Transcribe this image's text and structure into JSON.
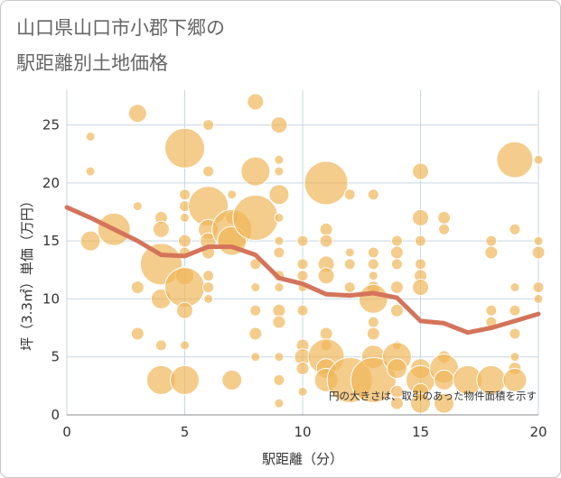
{
  "chart_data": {
    "type": "scatter",
    "title": [
      "山口県山口市小郡下郷の",
      "駅距離別土地価格"
    ],
    "xlabel": "駅距離（分）",
    "ylabel": "坪（3.3㎡）単価（万円）",
    "xlim": [
      0,
      20
    ],
    "ylim": [
      0,
      28
    ],
    "xticks": [
      0,
      5,
      10,
      15,
      20
    ],
    "yticks": [
      0,
      5,
      10,
      15,
      20,
      25
    ],
    "grid": true,
    "annotation": "円の大きさは、取引のあった物件面積を示す",
    "colors": {
      "bubble": "#f0b65a",
      "bubble_stroke": "#ffffff",
      "trend": "#d4745a",
      "grid": "#c8d6e2",
      "frame": "#c6c6c6",
      "title": "#666666"
    },
    "points": [
      {
        "x": 1,
        "y": 24,
        "s": 5
      },
      {
        "x": 1,
        "y": 21,
        "s": 5
      },
      {
        "x": 1,
        "y": 15,
        "s": 11
      },
      {
        "x": 2,
        "y": 16,
        "s": 18
      },
      {
        "x": 3,
        "y": 26,
        "s": 10
      },
      {
        "x": 3,
        "y": 18,
        "s": 5
      },
      {
        "x": 3,
        "y": 11,
        "s": 7
      },
      {
        "x": 3,
        "y": 7,
        "s": 7
      },
      {
        "x": 4,
        "y": 17,
        "s": 7
      },
      {
        "x": 4,
        "y": 16,
        "s": 9
      },
      {
        "x": 4,
        "y": 13,
        "s": 23
      },
      {
        "x": 4,
        "y": 10,
        "s": 11
      },
      {
        "x": 4,
        "y": 6,
        "s": 6
      },
      {
        "x": 4,
        "y": 3,
        "s": 16
      },
      {
        "x": 5,
        "y": 23,
        "s": 22
      },
      {
        "x": 5,
        "y": 19,
        "s": 6
      },
      {
        "x": 5,
        "y": 18,
        "s": 6
      },
      {
        "x": 5,
        "y": 17,
        "s": 5
      },
      {
        "x": 5,
        "y": 15,
        "s": 7
      },
      {
        "x": 5,
        "y": 14,
        "s": 6
      },
      {
        "x": 5,
        "y": 12,
        "s": 10
      },
      {
        "x": 5,
        "y": 11,
        "s": 22
      },
      {
        "x": 5,
        "y": 9,
        "s": 9
      },
      {
        "x": 5,
        "y": 6,
        "s": 5
      },
      {
        "x": 5,
        "y": 3,
        "s": 16
      },
      {
        "x": 6,
        "y": 25,
        "s": 6
      },
      {
        "x": 6,
        "y": 21,
        "s": 6
      },
      {
        "x": 6,
        "y": 18,
        "s": 22
      },
      {
        "x": 6,
        "y": 16,
        "s": 11
      },
      {
        "x": 6,
        "y": 15,
        "s": 9
      },
      {
        "x": 6,
        "y": 14,
        "s": 7
      },
      {
        "x": 6,
        "y": 12,
        "s": 6
      },
      {
        "x": 6,
        "y": 11,
        "s": 6
      },
      {
        "x": 6,
        "y": 10,
        "s": 5
      },
      {
        "x": 7,
        "y": 19,
        "s": 5
      },
      {
        "x": 7,
        "y": 17,
        "s": 7
      },
      {
        "x": 7,
        "y": 16,
        "s": 22
      },
      {
        "x": 7,
        "y": 15,
        "s": 16
      },
      {
        "x": 7,
        "y": 3,
        "s": 11
      },
      {
        "x": 8,
        "y": 27,
        "s": 9
      },
      {
        "x": 8,
        "y": 21,
        "s": 16
      },
      {
        "x": 8,
        "y": 17,
        "s": 25
      },
      {
        "x": 8,
        "y": 13,
        "s": 6
      },
      {
        "x": 8,
        "y": 11,
        "s": 5
      },
      {
        "x": 8,
        "y": 9,
        "s": 6
      },
      {
        "x": 8,
        "y": 7,
        "s": 7
      },
      {
        "x": 8,
        "y": 5,
        "s": 5
      },
      {
        "x": 9,
        "y": 25,
        "s": 9
      },
      {
        "x": 9,
        "y": 22,
        "s": 5
      },
      {
        "x": 9,
        "y": 21,
        "s": 5
      },
      {
        "x": 9,
        "y": 19,
        "s": 11
      },
      {
        "x": 9,
        "y": 17,
        "s": 5
      },
      {
        "x": 9,
        "y": 15,
        "s": 5
      },
      {
        "x": 9,
        "y": 14,
        "s": 6
      },
      {
        "x": 9,
        "y": 12,
        "s": 6
      },
      {
        "x": 9,
        "y": 11,
        "s": 5
      },
      {
        "x": 9,
        "y": 9,
        "s": 7
      },
      {
        "x": 9,
        "y": 8,
        "s": 7
      },
      {
        "x": 9,
        "y": 5,
        "s": 5
      },
      {
        "x": 9,
        "y": 3,
        "s": 6
      },
      {
        "x": 9,
        "y": 1,
        "s": 5
      },
      {
        "x": 10,
        "y": 15,
        "s": 6
      },
      {
        "x": 10,
        "y": 13,
        "s": 6
      },
      {
        "x": 10,
        "y": 12,
        "s": 6
      },
      {
        "x": 10,
        "y": 11,
        "s": 5
      },
      {
        "x": 10,
        "y": 9,
        "s": 6
      },
      {
        "x": 10,
        "y": 6,
        "s": 7
      },
      {
        "x": 10,
        "y": 5,
        "s": 9
      },
      {
        "x": 10,
        "y": 4,
        "s": 7
      },
      {
        "x": 10,
        "y": 2,
        "s": 5
      },
      {
        "x": 11,
        "y": 20,
        "s": 24
      },
      {
        "x": 11,
        "y": 16,
        "s": 7
      },
      {
        "x": 11,
        "y": 15,
        "s": 7
      },
      {
        "x": 11,
        "y": 13,
        "s": 9
      },
      {
        "x": 11,
        "y": 12,
        "s": 9
      },
      {
        "x": 11,
        "y": 7,
        "s": 7
      },
      {
        "x": 11,
        "y": 6,
        "s": 6
      },
      {
        "x": 11,
        "y": 5,
        "s": 20
      },
      {
        "x": 11,
        "y": 4,
        "s": 11
      },
      {
        "x": 11,
        "y": 3,
        "s": 13
      },
      {
        "x": 12,
        "y": 19,
        "s": 6
      },
      {
        "x": 12,
        "y": 14,
        "s": 5
      },
      {
        "x": 12,
        "y": 13,
        "s": 6
      },
      {
        "x": 12,
        "y": 11,
        "s": 6
      },
      {
        "x": 12,
        "y": 3,
        "s": 25
      },
      {
        "x": 13,
        "y": 19,
        "s": 6
      },
      {
        "x": 13,
        "y": 14,
        "s": 6
      },
      {
        "x": 13,
        "y": 13,
        "s": 6
      },
      {
        "x": 13,
        "y": 12,
        "s": 5
      },
      {
        "x": 13,
        "y": 11,
        "s": 7
      },
      {
        "x": 13,
        "y": 10,
        "s": 16
      },
      {
        "x": 13,
        "y": 8,
        "s": 6
      },
      {
        "x": 13,
        "y": 7,
        "s": 7
      },
      {
        "x": 13,
        "y": 5,
        "s": 13
      },
      {
        "x": 13,
        "y": 3,
        "s": 25
      },
      {
        "x": 14,
        "y": 15,
        "s": 6
      },
      {
        "x": 14,
        "y": 14,
        "s": 7
      },
      {
        "x": 14,
        "y": 13,
        "s": 6
      },
      {
        "x": 14,
        "y": 11,
        "s": 7
      },
      {
        "x": 14,
        "y": 9,
        "s": 7
      },
      {
        "x": 14,
        "y": 6,
        "s": 5
      },
      {
        "x": 14,
        "y": 5,
        "s": 16
      },
      {
        "x": 14,
        "y": 4,
        "s": 11
      },
      {
        "x": 14,
        "y": 2,
        "s": 7
      },
      {
        "x": 14,
        "y": 1,
        "s": 7
      },
      {
        "x": 15,
        "y": 21,
        "s": 9
      },
      {
        "x": 15,
        "y": 17,
        "s": 9
      },
      {
        "x": 15,
        "y": 15,
        "s": 6
      },
      {
        "x": 15,
        "y": 13,
        "s": 6
      },
      {
        "x": 15,
        "y": 12,
        "s": 7
      },
      {
        "x": 15,
        "y": 11,
        "s": 9
      },
      {
        "x": 15,
        "y": 4,
        "s": 11
      },
      {
        "x": 15,
        "y": 3,
        "s": 16
      },
      {
        "x": 15,
        "y": 2,
        "s": 9
      },
      {
        "x": 15,
        "y": 1,
        "s": 11
      },
      {
        "x": 16,
        "y": 17,
        "s": 7
      },
      {
        "x": 16,
        "y": 16,
        "s": 6
      },
      {
        "x": 16,
        "y": 5,
        "s": 7
      },
      {
        "x": 16,
        "y": 4,
        "s": 16
      },
      {
        "x": 16,
        "y": 3,
        "s": 11
      },
      {
        "x": 16,
        "y": 1,
        "s": 11
      },
      {
        "x": 17,
        "y": 3,
        "s": 16
      },
      {
        "x": 18,
        "y": 15,
        "s": 6
      },
      {
        "x": 18,
        "y": 14,
        "s": 7
      },
      {
        "x": 18,
        "y": 9,
        "s": 6
      },
      {
        "x": 18,
        "y": 8,
        "s": 6
      },
      {
        "x": 18,
        "y": 3,
        "s": 16
      },
      {
        "x": 19,
        "y": 22,
        "s": 20
      },
      {
        "x": 19,
        "y": 16,
        "s": 6
      },
      {
        "x": 19,
        "y": 11,
        "s": 5
      },
      {
        "x": 19,
        "y": 9,
        "s": 6
      },
      {
        "x": 19,
        "y": 7,
        "s": 6
      },
      {
        "x": 19,
        "y": 5,
        "s": 5
      },
      {
        "x": 19,
        "y": 4,
        "s": 7
      },
      {
        "x": 19,
        "y": 3,
        "s": 13
      },
      {
        "x": 20,
        "y": 22,
        "s": 5
      },
      {
        "x": 20,
        "y": 15,
        "s": 5
      },
      {
        "x": 20,
        "y": 14,
        "s": 7
      },
      {
        "x": 20,
        "y": 11,
        "s": 6
      },
      {
        "x": 20,
        "y": 10,
        "s": 5
      }
    ],
    "trend": {
      "x": [
        0,
        1,
        2,
        3,
        4,
        5,
        6,
        7,
        8,
        9,
        10,
        11,
        12,
        13,
        14,
        15,
        16,
        17,
        18,
        19,
        20
      ],
      "y": [
        17.9,
        17.0,
        16.0,
        15.0,
        13.8,
        13.7,
        14.5,
        14.5,
        13.8,
        11.8,
        11.3,
        10.4,
        10.3,
        10.5,
        10.1,
        8.1,
        7.9,
        7.1,
        7.5,
        8.1,
        8.7
      ]
    }
  }
}
